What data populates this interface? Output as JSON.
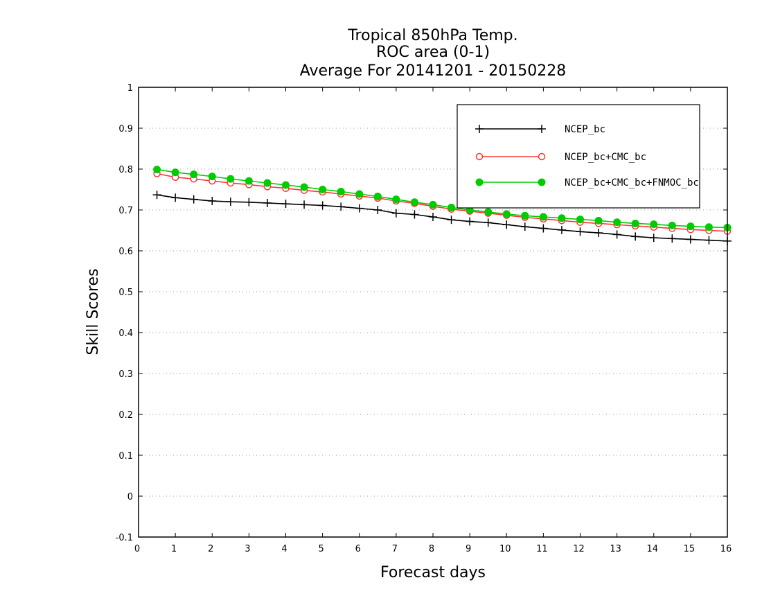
{
  "chart_data": {
    "type": "line",
    "title": [
      "Tropical 850hPa Temp.",
      "ROC area (0-1)",
      "Average For 20141201 - 20150228"
    ],
    "xlabel": "Forecast days",
    "ylabel": "Skill Scores",
    "xlim": [
      0,
      16
    ],
    "ylim": [
      -0.1,
      1
    ],
    "xticks": [
      "0",
      "1",
      "2",
      "3",
      "4",
      "5",
      "6",
      "7",
      "8",
      "9",
      "10",
      "11",
      "12",
      "13",
      "14",
      "15",
      "16"
    ],
    "yticks": [
      "-0.1",
      "0",
      "0.1",
      "0.2",
      "0.3",
      "0.4",
      "0.5",
      "0.6",
      "0.7",
      "0.8",
      "0.9",
      "1"
    ],
    "grid": true,
    "legend_position": "top-right",
    "x": [
      0.5,
      1,
      1.5,
      2,
      2.5,
      3,
      3.5,
      4,
      4.5,
      5,
      5.5,
      6,
      6.5,
      7,
      7.5,
      8,
      8.5,
      9,
      9.5,
      10,
      10.5,
      11,
      11.5,
      12,
      12.5,
      13,
      13.5,
      14,
      14.5,
      15,
      15.5,
      16
    ],
    "series": [
      {
        "name": "NCEP_bc",
        "color": "#000000",
        "marker": "plus",
        "values": [
          0.737,
          0.73,
          0.726,
          0.722,
          0.72,
          0.719,
          0.717,
          0.715,
          0.713,
          0.711,
          0.708,
          0.704,
          0.7,
          0.692,
          0.689,
          0.683,
          0.676,
          0.672,
          0.669,
          0.664,
          0.659,
          0.655,
          0.651,
          0.647,
          0.644,
          0.64,
          0.635,
          0.632,
          0.63,
          0.628,
          0.626,
          0.624
        ]
      },
      {
        "name": "NCEP_bc+CMC_bc",
        "color": "#ff3333",
        "marker": "open-circle",
        "values": [
          0.789,
          0.78,
          0.776,
          0.771,
          0.766,
          0.762,
          0.757,
          0.753,
          0.748,
          0.744,
          0.739,
          0.734,
          0.729,
          0.722,
          0.716,
          0.709,
          0.702,
          0.697,
          0.692,
          0.687,
          0.682,
          0.678,
          0.674,
          0.67,
          0.667,
          0.664,
          0.661,
          0.658,
          0.655,
          0.652,
          0.65,
          0.648
        ]
      },
      {
        "name": "NCEP_bc+CMC_bc+FNMOC_bc",
        "color": "#00cc00",
        "marker": "filled-circle",
        "values": [
          0.799,
          0.792,
          0.787,
          0.782,
          0.776,
          0.771,
          0.766,
          0.761,
          0.756,
          0.75,
          0.745,
          0.739,
          0.733,
          0.726,
          0.719,
          0.713,
          0.706,
          0.7,
          0.695,
          0.69,
          0.686,
          0.683,
          0.68,
          0.677,
          0.674,
          0.67,
          0.667,
          0.665,
          0.662,
          0.66,
          0.658,
          0.657
        ]
      }
    ]
  }
}
